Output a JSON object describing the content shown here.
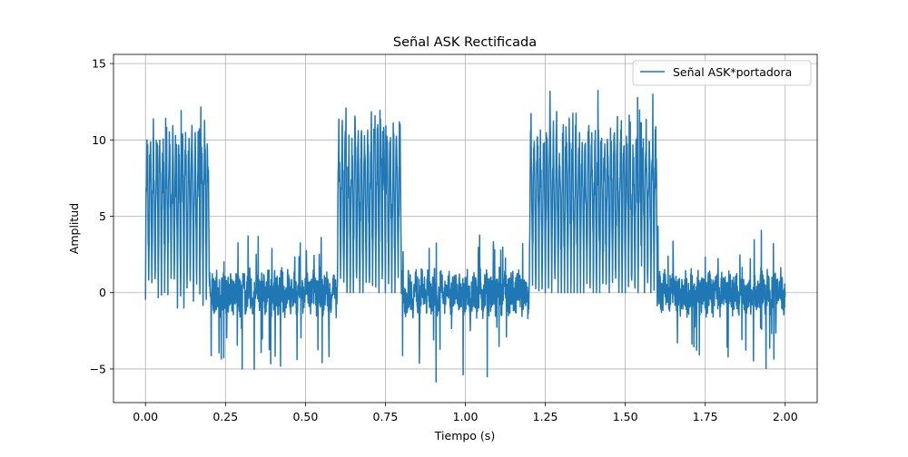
{
  "chart_data": {
    "type": "line",
    "title": "Señal ASK Rectificada",
    "xlabel": "Tiempo (s)",
    "ylabel": "Amplitud",
    "xlim": [
      -0.1,
      2.1
    ],
    "ylim": [
      -7.2,
      15.6
    ],
    "xticks": [
      0.0,
      0.25,
      0.5,
      0.75,
      1.0,
      1.25,
      1.5,
      1.75,
      2.0
    ],
    "xtick_labels": [
      "0.00",
      "0.25",
      "0.50",
      "0.75",
      "1.00",
      "1.25",
      "1.50",
      "1.75",
      "2.00"
    ],
    "yticks": [
      -5,
      0,
      5,
      10,
      15
    ],
    "ytick_labels": [
      "−5",
      "0",
      "5",
      "10",
      "15"
    ],
    "grid": true,
    "legend_position": "top-right",
    "series": [
      {
        "name": "Señal ASK*portadora",
        "color": "#1f77b4",
        "segments": [
          {
            "start": 0.0,
            "end": 0.2,
            "bit": 1,
            "typical_peak": 10,
            "max_peak": 14.5,
            "min": -1.3
          },
          {
            "start": 0.2,
            "end": 0.6,
            "bit": 0,
            "typical_peak": 2,
            "max_peak": 4,
            "min": -5.3
          },
          {
            "start": 0.6,
            "end": 0.8,
            "bit": 1,
            "typical_peak": 10.5,
            "max_peak": 12.6,
            "min": 0
          },
          {
            "start": 0.8,
            "end": 1.2,
            "bit": 0,
            "typical_peak": 2,
            "max_peak": 3.8,
            "min": -6.1
          },
          {
            "start": 1.2,
            "end": 1.6,
            "bit": 1,
            "typical_peak": 10.5,
            "max_peak": 13.8,
            "min": 0
          },
          {
            "start": 1.6,
            "end": 2.0,
            "bit": 0,
            "typical_peak": 2,
            "max_peak": 4.8,
            "min": -5.0
          }
        ]
      }
    ]
  }
}
